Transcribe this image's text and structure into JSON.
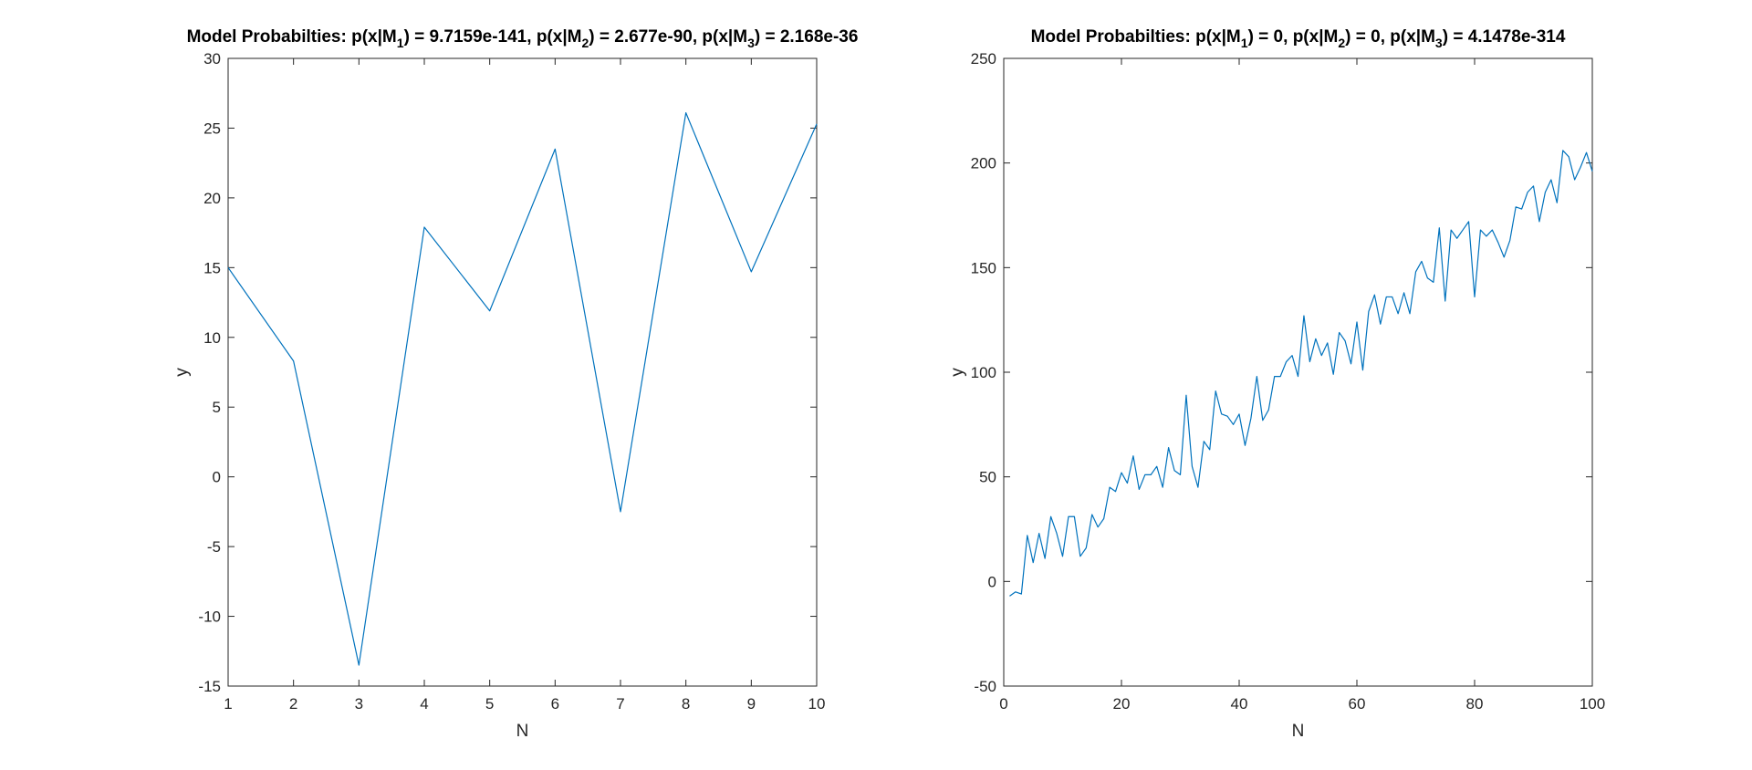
{
  "chart_data": [
    {
      "type": "line",
      "title": {
        "prefix": "Model Probabilties: ",
        "parts": [
          {
            "lhs": "p(x|M",
            "sub": "1",
            "rhs": ") = 9.7159e-141"
          },
          {
            "lhs": "p(x|M",
            "sub": "2",
            "rhs": ") = 2.677e-90"
          },
          {
            "lhs": "p(x|M",
            "sub": "3",
            "rhs": ") = 2.168e-36"
          }
        ],
        "separator": ", "
      },
      "xlabel": "N",
      "ylabel": "y",
      "xlim": [
        1,
        10
      ],
      "ylim": [
        -15,
        30
      ],
      "xticks": [
        1,
        2,
        3,
        4,
        5,
        6,
        7,
        8,
        9,
        10
      ],
      "yticks": [
        -15,
        -10,
        -5,
        0,
        5,
        10,
        15,
        20,
        25,
        30
      ],
      "color": "#0072BD",
      "grid": false,
      "x": [
        1,
        2,
        3,
        4,
        5,
        6,
        7,
        8,
        9,
        10
      ],
      "y": [
        15.0,
        8.3,
        -13.5,
        17.9,
        11.9,
        23.5,
        -2.5,
        26.1,
        14.7,
        25.3
      ]
    },
    {
      "type": "line",
      "title": {
        "prefix": "Model Probabilties: ",
        "parts": [
          {
            "lhs": "p(x|M",
            "sub": "1",
            "rhs": ") = 0"
          },
          {
            "lhs": "p(x|M",
            "sub": "2",
            "rhs": ") = 0"
          },
          {
            "lhs": "p(x|M",
            "sub": "3",
            "rhs": ") = 4.1478e-314"
          }
        ],
        "separator": ", "
      },
      "xlabel": "N",
      "ylabel": "y",
      "xlim": [
        0,
        100
      ],
      "ylim": [
        -50,
        250
      ],
      "xticks": [
        0,
        20,
        40,
        60,
        80,
        100
      ],
      "yticks": [
        -50,
        0,
        50,
        100,
        150,
        200,
        250
      ],
      "color": "#0072BD",
      "grid": false,
      "x": [
        1,
        2,
        3,
        4,
        5,
        6,
        7,
        8,
        9,
        10,
        11,
        12,
        13,
        14,
        15,
        16,
        17,
        18,
        19,
        20,
        21,
        22,
        23,
        24,
        25,
        26,
        27,
        28,
        29,
        30,
        31,
        32,
        33,
        34,
        35,
        36,
        37,
        38,
        39,
        40,
        41,
        42,
        43,
        44,
        45,
        46,
        47,
        48,
        49,
        50,
        51,
        52,
        53,
        54,
        55,
        56,
        57,
        58,
        59,
        60,
        61,
        62,
        63,
        64,
        65,
        66,
        67,
        68,
        69,
        70,
        71,
        72,
        73,
        74,
        75,
        76,
        77,
        78,
        79,
        80,
        81,
        82,
        83,
        84,
        85,
        86,
        87,
        88,
        89,
        90,
        91,
        92,
        93,
        94,
        95,
        96,
        97,
        98,
        99,
        100
      ],
      "y": [
        -7,
        -5,
        -6,
        22,
        9,
        23,
        11,
        31,
        23,
        12,
        31,
        31,
        12,
        16,
        32,
        26,
        30,
        45,
        43,
        52,
        47,
        60,
        44,
        51,
        51,
        55,
        45,
        64,
        53,
        51,
        89,
        55,
        45,
        67,
        63,
        91,
        80,
        79,
        75,
        80,
        65,
        78,
        98,
        77,
        82,
        98,
        98,
        105,
        108,
        98,
        127,
        105,
        116,
        108,
        114,
        99,
        119,
        115,
        104,
        124,
        101,
        129,
        137,
        123,
        136,
        136,
        128,
        138,
        128,
        148,
        153,
        145,
        143,
        169,
        134,
        168,
        164,
        168,
        172,
        136,
        168,
        165,
        168,
        162,
        155,
        163,
        179,
        178,
        186,
        189,
        172,
        186,
        192,
        181,
        206,
        203,
        192,
        198,
        205,
        196
      ]
    }
  ]
}
